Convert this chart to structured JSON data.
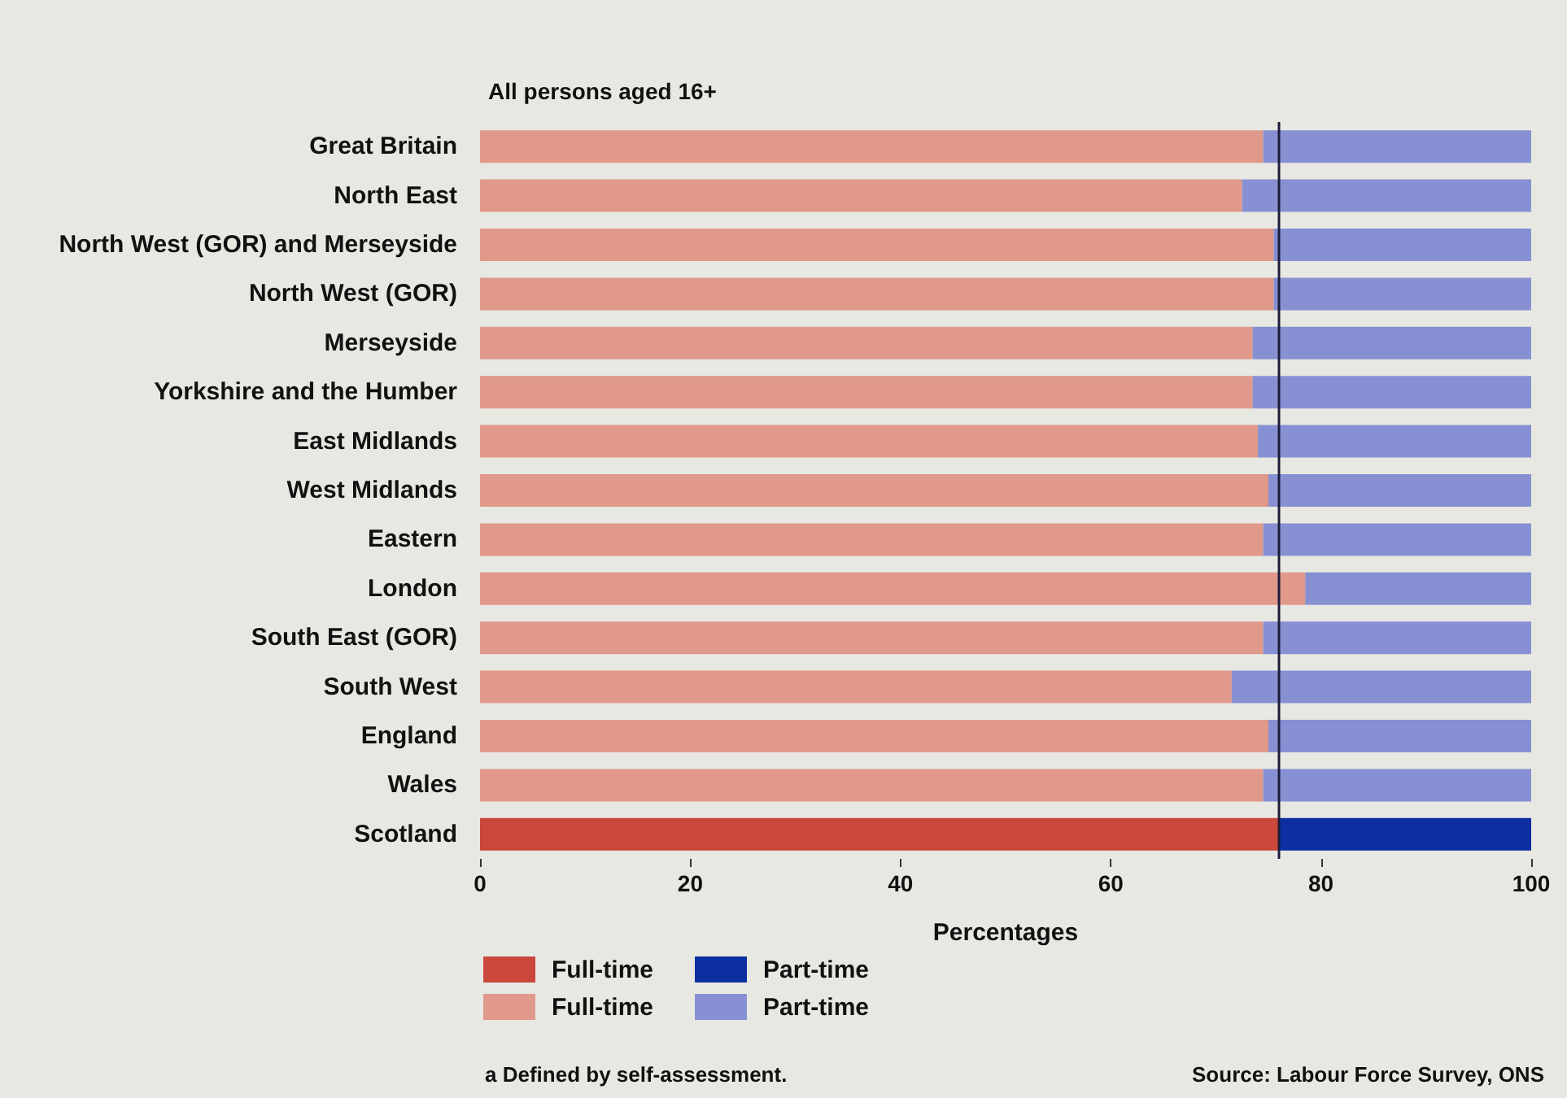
{
  "chart_data": {
    "type": "bar",
    "orientation": "horizontal",
    "stacked": true,
    "title": "All persons aged 16+",
    "xlabel": "Percentages",
    "categories": [
      "Great Britain",
      "North East",
      "North West (GOR) and Merseyside",
      "North West (GOR)",
      "Merseyside",
      "Yorkshire and the Humber",
      "East Midlands",
      "West Midlands",
      "Eastern",
      "London",
      "South East (GOR)",
      "South West",
      "England",
      "Wales",
      "Scotland"
    ],
    "series": [
      {
        "name": "Full-time",
        "color": "#c9473b",
        "values": [
          null,
          null,
          null,
          null,
          null,
          null,
          null,
          null,
          null,
          null,
          null,
          null,
          null,
          null,
          76
        ]
      },
      {
        "name": "Full-time",
        "color": "#e0998a",
        "values": [
          74.5,
          72.5,
          75.5,
          75.5,
          73.5,
          73.5,
          74,
          75,
          74.5,
          78.5,
          74.5,
          71.5,
          75,
          74.5,
          null
        ]
      },
      {
        "name": "Part-time",
        "color": "#0b2fa0",
        "values": [
          null,
          null,
          null,
          null,
          null,
          null,
          null,
          null,
          null,
          null,
          null,
          null,
          null,
          null,
          24
        ]
      },
      {
        "name": "Part-time",
        "color": "#8790d2",
        "values": [
          25.5,
          27.5,
          24.5,
          24.5,
          26.5,
          26.5,
          26,
          25,
          25.5,
          21.5,
          25.5,
          28.5,
          25,
          25.5,
          null
        ]
      }
    ],
    "xlim": [
      0,
      100
    ],
    "xticks": [
      0,
      20,
      40,
      60,
      80,
      100
    ],
    "ref_lines": [
      {
        "axis": "x",
        "value": 76,
        "color": "#1c1c3a"
      }
    ],
    "legend": "bottom left",
    "annotations": [
      "a Defined by self-assessment.",
      "Source: Labour Force Survey, ONS"
    ]
  }
}
